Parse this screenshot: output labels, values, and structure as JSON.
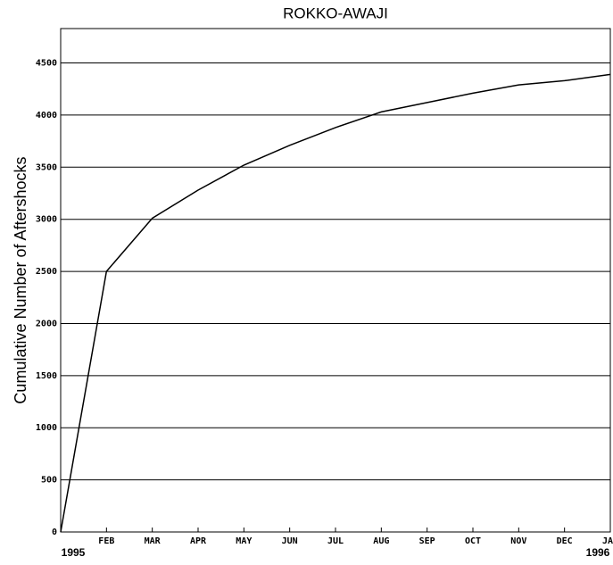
{
  "chart_data": {
    "type": "line",
    "title": "ROKKO-AWAJI",
    "ylabel": "Cumulative Number of Aftershocks",
    "x": [
      "1995-01",
      "1995-02",
      "1995-03",
      "1995-04",
      "1995-05",
      "1995-06",
      "1995-07",
      "1995-08",
      "1995-09",
      "1995-10",
      "1995-11",
      "1995-12",
      "1996-01"
    ],
    "series": [
      {
        "name": "ROKKO-AWAJI",
        "color": "#000000",
        "values": [
          0,
          2500,
          3010,
          3280,
          3520,
          3710,
          3880,
          4030,
          4120,
          4210,
          4290,
          4330,
          4390
        ]
      }
    ],
    "xlim": [
      "1995-01",
      "1996-01"
    ],
    "xticks": [
      {
        "value": "1995-02",
        "label": "FEB"
      },
      {
        "value": "1995-03",
        "label": "MAR"
      },
      {
        "value": "1995-04",
        "label": "APR"
      },
      {
        "value": "1995-05",
        "label": "MAY"
      },
      {
        "value": "1995-06",
        "label": "JUN"
      },
      {
        "value": "1995-07",
        "label": "JUL"
      },
      {
        "value": "1995-08",
        "label": "AUG"
      },
      {
        "value": "1995-09",
        "label": "SEP"
      },
      {
        "value": "1995-10",
        "label": "OCT"
      },
      {
        "value": "1995-11",
        "label": "NOV"
      },
      {
        "value": "1995-12",
        "label": "DEC"
      },
      {
        "value": "1996-01",
        "label": "JAN"
      }
    ],
    "year_labels": [
      {
        "value": "1995-01",
        "label": "1995"
      },
      {
        "value": "1996-01",
        "label": "1996"
      }
    ],
    "ylim": [
      0,
      4830
    ],
    "yticks": [
      0,
      500,
      1000,
      1500,
      2000,
      2500,
      3000,
      3500,
      4000,
      4500
    ],
    "grid": true
  }
}
